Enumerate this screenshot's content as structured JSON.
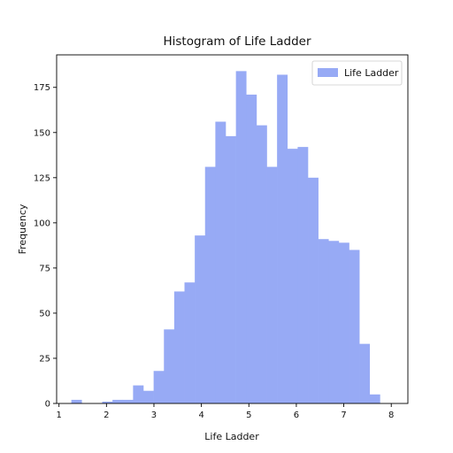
{
  "chart_data": {
    "type": "bar",
    "title": "Histogram of Life Ladder",
    "xlabel": "Life Ladder",
    "ylabel": "Frequency",
    "xlim": [
      0.95,
      8.35
    ],
    "ylim": [
      0,
      193
    ],
    "xticks": [
      1,
      2,
      3,
      4,
      5,
      6,
      7,
      8
    ],
    "yticks": [
      0,
      25,
      50,
      75,
      100,
      125,
      150,
      175
    ],
    "bar_color": "#97aaf5",
    "legend": {
      "position": "top-right",
      "entries": [
        "Life Ladder"
      ]
    },
    "grid": false,
    "bins": {
      "start": 1.26,
      "width": 0.2167,
      "counts": [
        2,
        0,
        0,
        1,
        2,
        2,
        10,
        7,
        18,
        41,
        62,
        67,
        93,
        131,
        156,
        148,
        184,
        171,
        154,
        131,
        182,
        141,
        142,
        125,
        91,
        90,
        89,
        85,
        33,
        5
      ]
    }
  }
}
